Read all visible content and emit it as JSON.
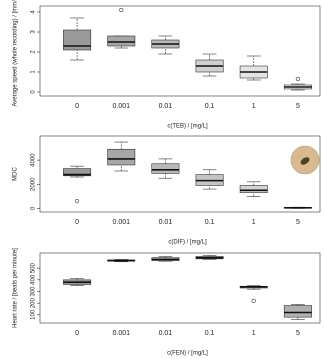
{
  "chart_data": [
    {
      "type": "box",
      "y_label": "Average speed (whole recording) / [mm/s]",
      "x_label": "c(TEB) / [mg/L]",
      "categories": [
        "0",
        "0.001",
        "0.01",
        "0.1",
        "1",
        "5"
      ],
      "colors": [
        "#9a9a9a",
        "#a6a6a6",
        "#b8b8b8",
        "#d0d0d0",
        "#e4e4e4",
        "#f2f2f2"
      ],
      "boxes": [
        {
          "low": 1.6,
          "q1": 2.1,
          "median": 2.3,
          "q3": 3.1,
          "high": 3.7,
          "outliers": []
        },
        {
          "low": 2.2,
          "q1": 2.3,
          "median": 2.5,
          "q3": 2.8,
          "high": 2.8,
          "outliers": [
            4.1
          ]
        },
        {
          "low": 1.9,
          "q1": 2.2,
          "median": 2.4,
          "q3": 2.6,
          "high": 2.8,
          "outliers": []
        },
        {
          "low": 0.8,
          "q1": 1.0,
          "median": 1.3,
          "q3": 1.6,
          "high": 1.9,
          "outliers": []
        },
        {
          "low": 0.6,
          "q1": 0.7,
          "median": 1.0,
          "q3": 1.3,
          "high": 1.8,
          "outliers": []
        },
        {
          "low": 0.1,
          "q1": 0.15,
          "median": 0.25,
          "q3": 0.35,
          "high": 0.4,
          "outliers": [
            0.65
          ]
        }
      ],
      "ylim": [
        -0.2,
        4.3
      ],
      "yticks": [
        0,
        1,
        2,
        3,
        4
      ]
    },
    {
      "type": "box",
      "y_label": "MDC",
      "x_label": "c(DIF) / [mg/L]",
      "categories": [
        "0",
        "0.001",
        "0.01",
        "0.1",
        "1",
        "5"
      ],
      "colors": [
        "#9a9a9a",
        "#a6a6a6",
        "#b8b8b8",
        "#c4c4c4",
        "#d4d4d4",
        "#e8e8e8"
      ],
      "boxes": [
        {
          "low": 2600,
          "q1": 2700,
          "median": 2800,
          "q3": 3300,
          "high": 3500,
          "outliers": [
            600
          ]
        },
        {
          "low": 3100,
          "q1": 3600,
          "median": 4100,
          "q3": 4900,
          "high": 5500,
          "outliers": []
        },
        {
          "low": 2500,
          "q1": 2900,
          "median": 3200,
          "q3": 3700,
          "high": 4100,
          "outliers": []
        },
        {
          "low": 1600,
          "q1": 1900,
          "median": 2300,
          "q3": 2800,
          "high": 3200,
          "outliers": []
        },
        {
          "low": 1000,
          "q1": 1300,
          "median": 1500,
          "q3": 1900,
          "high": 2200,
          "outliers": []
        },
        {
          "low": 0,
          "q1": 20,
          "median": 50,
          "q3": 80,
          "high": 100,
          "outliers": []
        }
      ],
      "ylim": [
        -300,
        6000
      ],
      "yticks": [
        0,
        2000,
        4000
      ]
    },
    {
      "type": "box",
      "y_label": "Heart rate / [beats per minute]",
      "x_label": "c(FEN) / [mg/L]",
      "categories": [
        "0",
        "0.001",
        "0.01",
        "0.1",
        "1",
        "5"
      ],
      "colors": [
        "#9a9a9a",
        "#a6a6a6",
        "#b4b4b4",
        "#c0c0c0",
        "#a0a0a0",
        "#b0b0b0"
      ],
      "boxes": [
        {
          "low": 350,
          "q1": 360,
          "median": 380,
          "q3": 400,
          "high": 410,
          "outliers": []
        },
        {
          "low": 555,
          "q1": 560,
          "median": 565,
          "q3": 570,
          "high": 575,
          "outliers": []
        },
        {
          "low": 560,
          "q1": 565,
          "median": 575,
          "q3": 590,
          "high": 600,
          "outliers": []
        },
        {
          "low": 575,
          "q1": 580,
          "median": 590,
          "q3": 600,
          "high": 610,
          "outliers": []
        },
        {
          "low": 320,
          "q1": 330,
          "median": 340,
          "q3": 345,
          "high": 350,
          "outliers": [
            220
          ]
        },
        {
          "low": 60,
          "q1": 80,
          "median": 120,
          "q3": 180,
          "high": 190,
          "outliers": []
        }
      ],
      "ylim": [
        30,
        630
      ],
      "yticks": [
        100,
        200,
        300,
        400,
        500
      ]
    }
  ]
}
